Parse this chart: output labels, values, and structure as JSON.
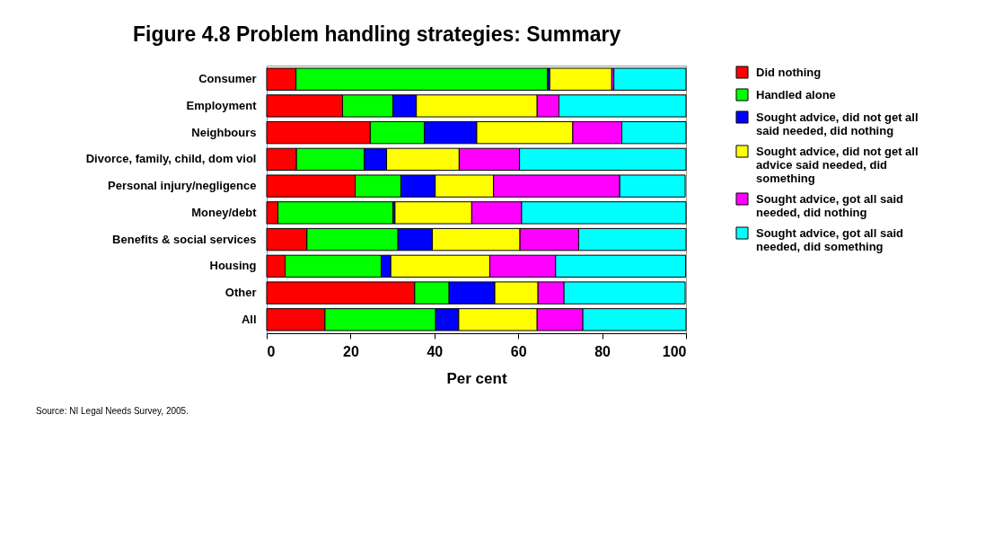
{
  "chart_data": {
    "type": "bar",
    "orientation": "horizontal",
    "stacked": true,
    "title": "Figure 4.8 Problem handling strategies: Summary",
    "xlabel": "Per cent",
    "categories": [
      "Consumer",
      "Employment",
      "Neighbours",
      "Divorce, family, child, dom viol",
      "Personal injury/negligence",
      "Money/debt",
      "Benefits & social services",
      "Housing",
      "Other",
      "All"
    ],
    "series": [
      {
        "name": "Did nothing",
        "color": "#ff0000",
        "values": [
          7,
          18.1,
          24.7,
          7.1,
          21.1,
          2.7,
          9.6,
          4.4,
          35.3,
          13.9
        ]
      },
      {
        "name": "Handled alone",
        "color": "#00ff00",
        "values": [
          60,
          12,
          12.9,
          16.2,
          10.9,
          27.4,
          21.7,
          22.9,
          8.2,
          26.4
        ]
      },
      {
        "name": "Sought advice, did not get all said needed, did nothing",
        "color": "#0000ff",
        "values": [
          0.5,
          5.6,
          12.5,
          5.3,
          8.2,
          0.5,
          8.2,
          2.3,
          10.9,
          5.5
        ]
      },
      {
        "name": "Sought advice, did not get all advice said needed, did something",
        "color": "#ffff00",
        "values": [
          14.8,
          28.8,
          22.9,
          17.3,
          13.9,
          18.3,
          20.9,
          23.6,
          10.3,
          18.7
        ]
      },
      {
        "name": "Sought advice, got all said needed, did nothing",
        "color": "#ff00ff",
        "values": [
          0.5,
          5.2,
          11.7,
          14.4,
          30.1,
          11.9,
          14,
          15.7,
          6.2,
          10.9
        ]
      },
      {
        "name": "Sought advice, got all said needed, did something",
        "color": "#00ffff",
        "values": [
          17.2,
          30.3,
          15.3,
          39.7,
          15.6,
          39.2,
          25.6,
          31,
          28.9,
          24.6
        ]
      }
    ],
    "xlim": [
      0,
      100
    ],
    "xticks": [
      0,
      20,
      40,
      60,
      80,
      100
    ],
    "grid": false,
    "legend": "right",
    "annotations": [
      "Source: NI Legal Needs Survey, 2005."
    ]
  }
}
